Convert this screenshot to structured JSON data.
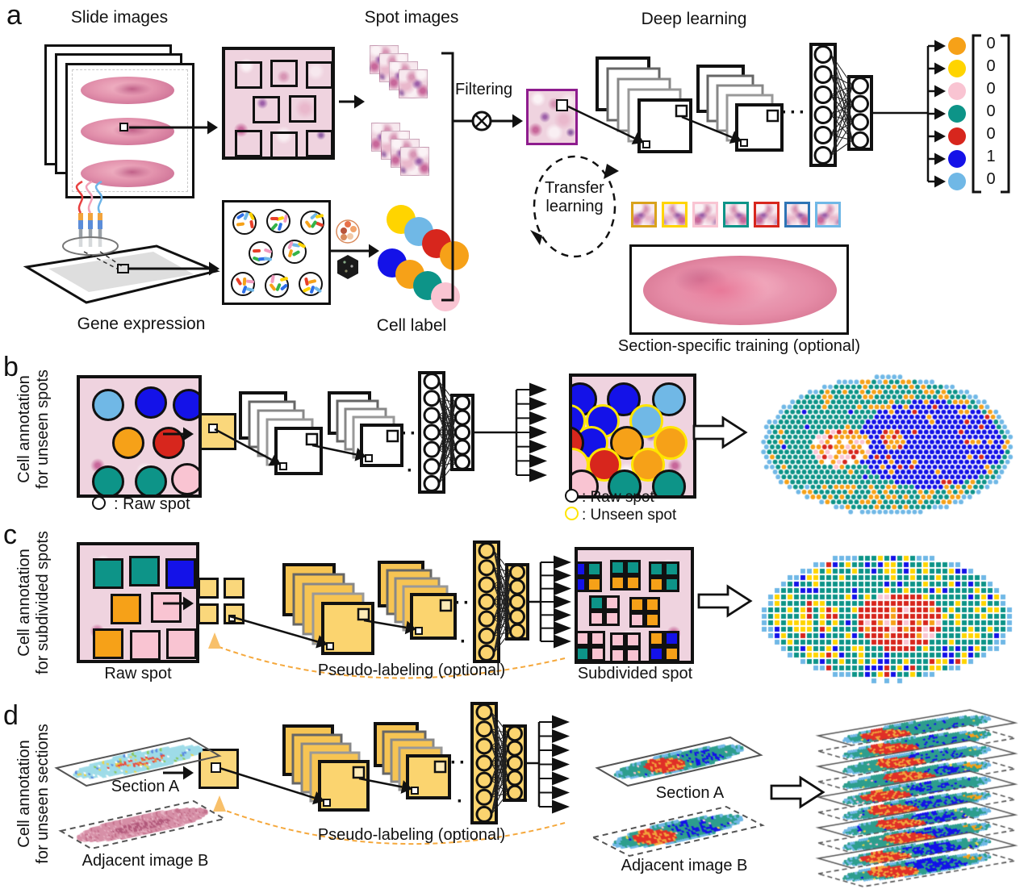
{
  "palette": {
    "orange": "#F6A118",
    "yellow": "#FFD400",
    "pink": "#F9C4D2",
    "teal": "#0D9488",
    "red": "#D7261D",
    "blue": "#1412E8",
    "lightblue": "#70B8E6",
    "gold": "#D9A21B",
    "steelblue": "#2E74B5",
    "ring_yellow": "#FFE500",
    "ring_black": "#111111",
    "cnn_yellow": "#FBD46F",
    "cnn_yellow_dark": "#F6C453",
    "pseudo_orange": "#F5A83C",
    "purple_border": "#8E1C8E"
  },
  "panel_a": {
    "label": "a",
    "titles": {
      "slides": "Slide images",
      "spots": "Spot images",
      "deep": "Deep learning",
      "filtering": "Filtering",
      "gene": "Gene expression",
      "cell_label": "Cell label",
      "section_training": "Section-specific training (optional)"
    },
    "transfer": {
      "line1": "Transfer",
      "line2": "learning"
    },
    "ellipsis": "···",
    "output_vector": [
      {
        "color": "orange",
        "value": "0"
      },
      {
        "color": "yellow",
        "value": "0"
      },
      {
        "color": "pink",
        "value": "0"
      },
      {
        "color": "teal",
        "value": "0"
      },
      {
        "color": "red",
        "value": "0"
      },
      {
        "color": "blue",
        "value": "1"
      },
      {
        "color": "lightblue",
        "value": "0"
      }
    ],
    "cell_chains": [
      [
        "yellow",
        "lightblue",
        "red",
        "orange"
      ],
      [
        "blue",
        "orange",
        "teal",
        "pink"
      ]
    ],
    "training_patches": [
      "gold",
      "yellow",
      "pink",
      "teal",
      "red",
      "steelblue",
      "lightblue"
    ],
    "transcript_dash_colors": [
      "#2E6FE8",
      "#FFD400",
      "#E8402A",
      "#35B44A",
      "#6FB7E8",
      "#F29BC0",
      "#F6A118"
    ],
    "tool_icons": [
      "colorful-round-logo",
      "black-hexagon-logo"
    ]
  },
  "panel_b": {
    "label": "b",
    "side_label": {
      "line1": "Cell annotation",
      "line2": "for unseen spots"
    },
    "input_caption": {
      "symbol": "ring_black",
      "text": " : Raw spot"
    },
    "output_legend": [
      {
        "symbol": "ring_black",
        "text": ": Raw spot"
      },
      {
        "symbol": "ring_yellow",
        "text": ": Unseen spot"
      }
    ],
    "dots1": "··",
    "dots2": "·",
    "input_spots": [
      "lightblue",
      "blue",
      "blue",
      "orange",
      "red",
      "teal",
      "teal",
      "pink"
    ],
    "output_spots": [
      {
        "c": "lightblue",
        "r": "k"
      },
      {
        "c": "blue",
        "r": "k"
      },
      {
        "c": "blue",
        "r": "k"
      },
      {
        "c": "lightblue",
        "r": "y"
      },
      {
        "c": "blue",
        "r": "y"
      },
      {
        "c": "blue",
        "r": "y"
      },
      {
        "c": "orange",
        "r": "y"
      },
      {
        "c": "orange",
        "r": "k"
      },
      {
        "c": "blue",
        "r": "y"
      },
      {
        "c": "red",
        "r": "k"
      },
      {
        "c": "orange",
        "r": "y"
      },
      {
        "c": "red",
        "r": "y"
      },
      {
        "c": "pink",
        "r": "y"
      },
      {
        "c": "teal",
        "r": "k"
      },
      {
        "c": "teal",
        "r": "k"
      },
      {
        "c": "pink",
        "r": "k"
      }
    ]
  },
  "panel_c": {
    "label": "c",
    "side_label": {
      "line1": "Cell annotation",
      "line2": "for subdivided spots"
    },
    "input_caption": "Raw spot",
    "output_caption": "Subdivided spot",
    "pseudo_label": "Pseudo-labeling (optional)",
    "dots1": "··",
    "dots2": "·",
    "input_squares": [
      "teal",
      "teal",
      "blue",
      "orange",
      "pink",
      "orange",
      "pink",
      "pink"
    ],
    "output_quads": [
      [
        "teal",
        "teal",
        "teal",
        "orange"
      ],
      [
        "teal",
        "teal",
        "orange",
        "orange"
      ],
      [
        "teal",
        "blue",
        "orange",
        "blue"
      ],
      [
        "orange",
        "orange",
        "orange",
        "pink"
      ],
      [
        "pink",
        "teal",
        "pink",
        "pink"
      ],
      [
        "blue",
        "orange",
        "orange",
        "blue"
      ],
      [
        "pink",
        "pink",
        "pink",
        "pink"
      ],
      [
        "pink",
        "pink",
        "pink",
        "teal"
      ]
    ]
  },
  "panel_d": {
    "label": "d",
    "side_label": {
      "line1": "Cell annotation",
      "line2": "for unseen sections"
    },
    "input_section_a": "Section A",
    "input_adjacent_b": "Adjacent image B",
    "output_section_a": "Section A",
    "output_adjacent_b": "Adjacent image B",
    "pseudo_label": "Pseudo-labeling (optional)",
    "dots1": "··",
    "dots2": "·"
  }
}
